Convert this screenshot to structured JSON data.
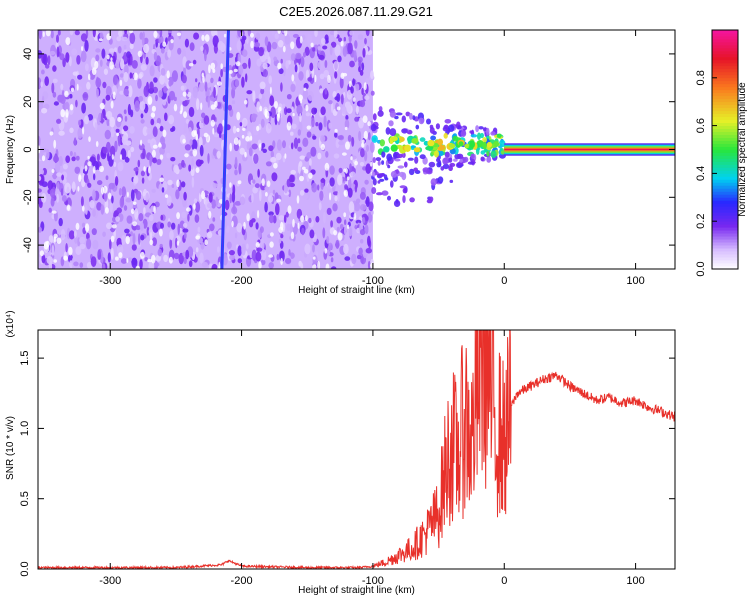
{
  "title": "C2E5.2026.087.11.29.G21",
  "colors": {
    "line": "#e8302a",
    "background_noise": "#7b2cf0",
    "frame": "#000000"
  },
  "chart_data": [
    {
      "type": "heatmap",
      "id": "spectrogram",
      "xlabel": "Height of straight line (km)",
      "ylabel": "Frequency (Hz)",
      "xlim": [
        -355,
        130
      ],
      "ylim": [
        -50,
        50
      ],
      "x_ticks": [
        -300,
        -200,
        -100,
        0,
        100
      ],
      "x_tick_labels": [
        "-300",
        "-200",
        "-100",
        "0",
        "100"
      ],
      "y_ticks": [
        -40,
        -20,
        0,
        20,
        40
      ],
      "y_tick_labels": [
        "-40",
        "-20",
        "0",
        "20",
        "40"
      ],
      "colorbar": {
        "label": "Normalized spectral amplitude",
        "range": [
          0,
          1
        ],
        "ticks": [
          0.0,
          0.2,
          0.4,
          0.6,
          0.8
        ],
        "tick_labels": [
          "0.0",
          "0.2",
          "0.4",
          "0.6",
          "0.8"
        ]
      },
      "regions": [
        {
          "name": "noise",
          "x_range": [
            -355,
            -100
          ],
          "f_range": [
            -50,
            50
          ],
          "amplitude": 0.15
        },
        {
          "name": "oblique streak",
          "x_from": -215,
          "f_from": -50,
          "x_to": -210,
          "f_to": 50,
          "amplitude": 0.3
        },
        {
          "name": "signal band",
          "x_range": [
            0,
            130
          ],
          "f_center": 0,
          "amplitude": 1.0
        }
      ]
    },
    {
      "type": "line",
      "id": "snr",
      "xlabel": "Height of straight line (km)",
      "ylabel": "SNR (10 * v/v)",
      "scale_label": "(x10⁴)",
      "xlim": [
        -355,
        130
      ],
      "ylim": [
        0,
        1.7
      ],
      "x_ticks": [
        -300,
        -200,
        -100,
        0,
        100
      ],
      "x_tick_labels": [
        "-300",
        "-200",
        "-100",
        "0",
        "100"
      ],
      "y_ticks": [
        0.0,
        0.5,
        1.0,
        1.5
      ],
      "y_tick_labels": [
        "0.0",
        "0.5",
        "1.0",
        "1.5"
      ],
      "series": [
        {
          "name": "SNR",
          "x": [
            -355,
            -300,
            -250,
            -215,
            -210,
            -200,
            -150,
            -110,
            -100,
            -90,
            -80,
            -70,
            -60,
            -50,
            -45,
            -40,
            -35,
            -30,
            -25,
            -20,
            -15,
            -10,
            -5,
            0,
            5,
            10,
            20,
            30,
            40,
            50,
            60,
            70,
            80,
            90,
            100,
            110,
            120,
            130
          ],
          "y": [
            0.01,
            0.01,
            0.01,
            0.03,
            0.06,
            0.02,
            0.01,
            0.01,
            0.02,
            0.05,
            0.1,
            0.15,
            0.25,
            0.4,
            0.7,
            0.9,
            0.8,
            1.1,
            0.9,
            1.3,
            1.65,
            1.2,
            1.0,
            0.9,
            1.15,
            1.25,
            1.3,
            1.35,
            1.38,
            1.3,
            1.25,
            1.2,
            1.22,
            1.18,
            1.2,
            1.15,
            1.12,
            1.08
          ]
        }
      ]
    }
  ]
}
